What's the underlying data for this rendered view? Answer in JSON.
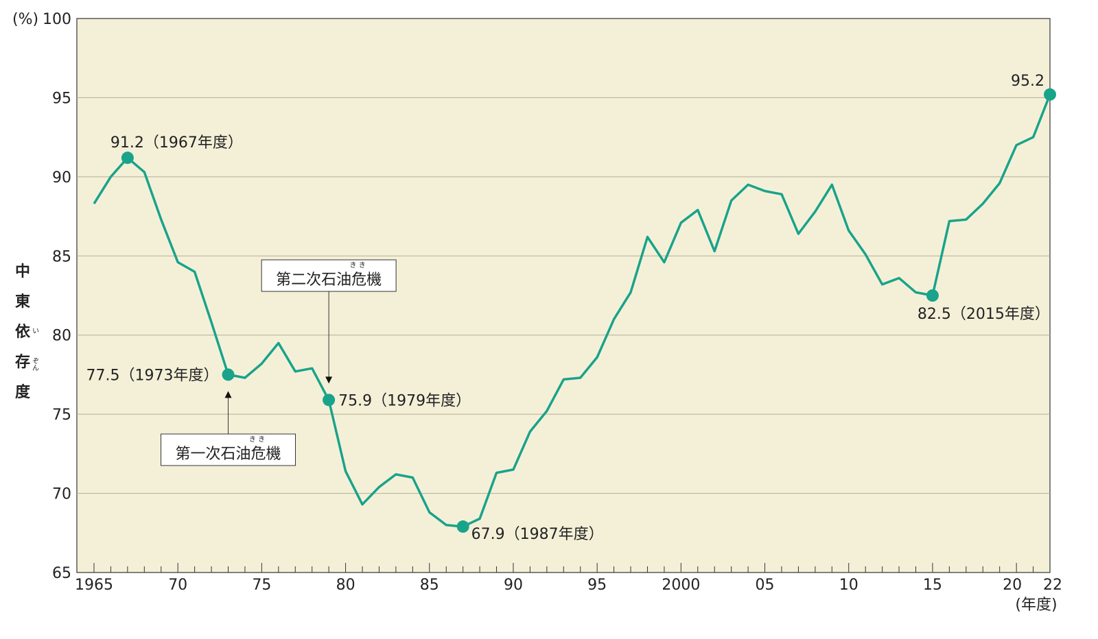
{
  "chart_data": {
    "type": "line",
    "y_unit_label": "(%)",
    "x_unit_label": "(年度)",
    "ylabel_chars": [
      "中",
      "東",
      "依",
      "存",
      "度"
    ],
    "ylabel_ruby": [
      {
        "index": 2,
        "text": "い"
      },
      {
        "index": 3,
        "text": "ぞん"
      }
    ],
    "ylim": [
      65,
      100
    ],
    "xlim": [
      1965,
      2022
    ],
    "y_ticks": [
      65,
      70,
      75,
      80,
      85,
      90,
      95,
      100
    ],
    "x_tick_labels": [
      {
        "year": 1965,
        "label": "1965"
      },
      {
        "year": 1970,
        "label": "70"
      },
      {
        "year": 1975,
        "label": "75"
      },
      {
        "year": 1980,
        "label": "80"
      },
      {
        "year": 1985,
        "label": "85"
      },
      {
        "year": 1990,
        "label": "90"
      },
      {
        "year": 1995,
        "label": "95"
      },
      {
        "year": 2000,
        "label": "2000"
      },
      {
        "year": 2005,
        "label": "05"
      },
      {
        "year": 2010,
        "label": "10"
      },
      {
        "year": 2015,
        "label": "15"
      },
      {
        "year": 2020,
        "label": "20"
      },
      {
        "year": 2022,
        "label": "22"
      }
    ],
    "grid": true,
    "background_color": "#f4f0d8",
    "line_color": "#19a38a",
    "series": [
      {
        "x": [
          1965,
          1966,
          1967,
          1968,
          1969,
          1970,
          1971,
          1972,
          1973,
          1974,
          1975,
          1976,
          1977,
          1978,
          1979,
          1980,
          1981,
          1982,
          1983,
          1984,
          1985,
          1986,
          1987,
          1988,
          1989,
          1990,
          1991,
          1992,
          1993,
          1994,
          1995,
          1996,
          1997,
          1998,
          1999,
          2000,
          2001,
          2002,
          2003,
          2004,
          2005,
          2006,
          2007,
          2008,
          2009,
          2010,
          2011,
          2012,
          2013,
          2014,
          2015,
          2016,
          2017,
          2018,
          2019,
          2020,
          2021,
          2022
        ],
        "values": [
          88.3,
          90.0,
          91.2,
          90.3,
          87.3,
          84.6,
          84.0,
          80.8,
          77.5,
          77.3,
          78.2,
          79.5,
          77.7,
          77.9,
          75.9,
          71.4,
          69.3,
          70.4,
          71.2,
          71.0,
          68.8,
          68.0,
          67.9,
          68.4,
          71.3,
          71.5,
          73.9,
          75.2,
          77.2,
          77.3,
          78.6,
          81.0,
          82.7,
          86.2,
          84.6,
          87.1,
          87.9,
          85.3,
          88.5,
          89.5,
          89.1,
          88.9,
          86.4,
          87.8,
          89.5,
          86.6,
          85.1,
          83.2,
          83.6,
          82.7,
          82.5,
          87.2,
          87.3,
          88.3,
          89.6,
          92.0,
          92.5,
          95.2
        ]
      }
    ],
    "highlights": [
      {
        "year": 1967,
        "value": 91.2,
        "label": "91.2（1967年度）",
        "pos": "above"
      },
      {
        "year": 1973,
        "value": 77.5,
        "label": "77.5（1973年度）",
        "pos": "left"
      },
      {
        "year": 1979,
        "value": 75.9,
        "label": "75.9（1979年度）",
        "pos": "right"
      },
      {
        "year": 1987,
        "value": 67.9,
        "label": "67.9（1987年度）",
        "pos": "below-right"
      },
      {
        "year": 2015,
        "value": 82.5,
        "label": "82.5（2015年度）",
        "pos": "below"
      },
      {
        "year": 2022,
        "value": 95.2,
        "label": "95.2",
        "pos": "above-left"
      }
    ],
    "callouts": [
      {
        "year": 1973,
        "text": "第一次石油危機",
        "ruby": "き き",
        "side": "below"
      },
      {
        "year": 1979,
        "text": "第二次石油危機",
        "ruby": "き き",
        "side": "above"
      }
    ]
  }
}
